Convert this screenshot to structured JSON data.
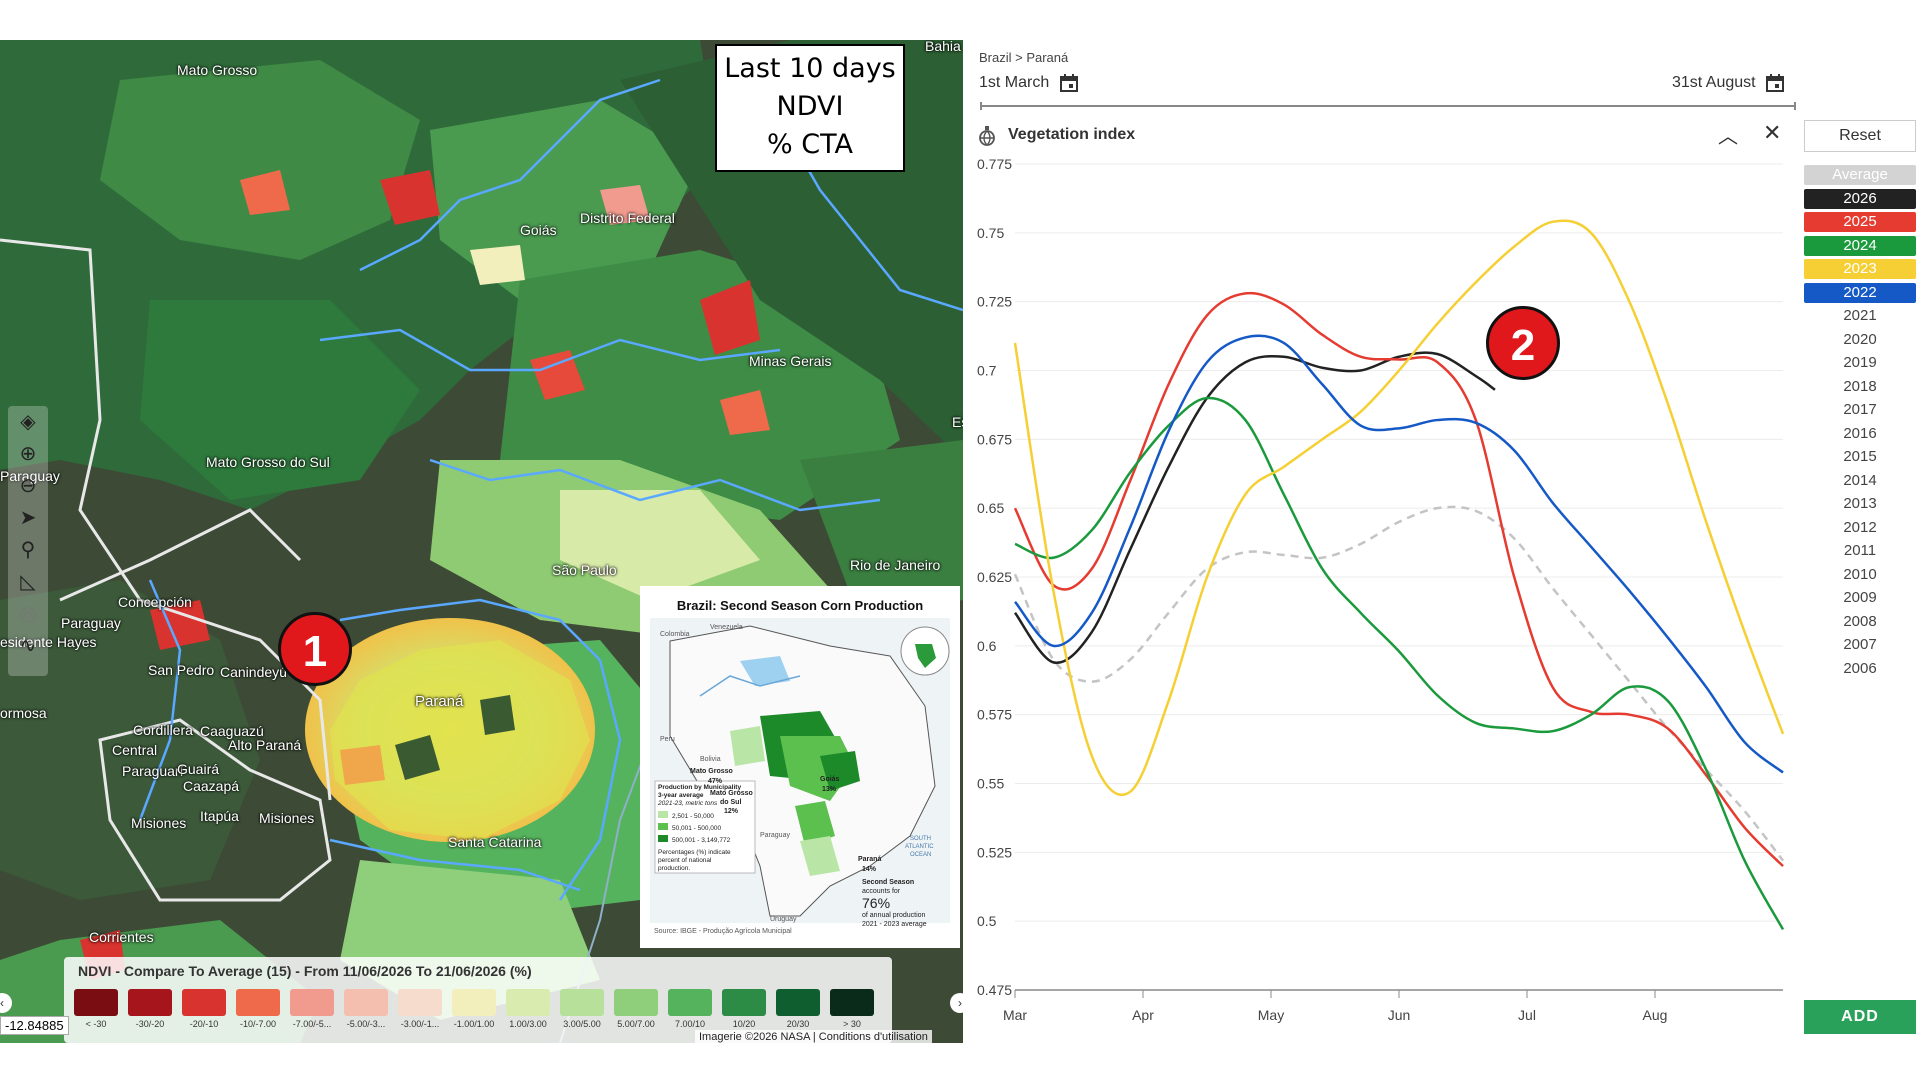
{
  "map": {
    "info_box": [
      "Last 10 days",
      "NDVI",
      "% CTA"
    ],
    "labels": [
      {
        "text": "Mato Grosso",
        "key": "mg"
      },
      {
        "text": "Bahia",
        "key": "ba"
      },
      {
        "text": "Goiás",
        "key": "go"
      },
      {
        "text": "Distrito Federal",
        "key": "df"
      },
      {
        "text": "Minas Gerais",
        "key": "mgr"
      },
      {
        "text": "Mato Grosso do Sul",
        "key": "ms"
      },
      {
        "text": "Paraguay",
        "key": "py1"
      },
      {
        "text": "São Paulo",
        "key": "sp"
      },
      {
        "text": "Rio de Janeiro",
        "key": "rj"
      },
      {
        "text": "Concepción",
        "key": "con"
      },
      {
        "text": "Paraguay",
        "key": "py2"
      },
      {
        "text": "esidente Hayes",
        "key": "ph"
      },
      {
        "text": "San Pedro",
        "key": "spd"
      },
      {
        "text": "Canindeyú",
        "key": "can"
      },
      {
        "text": "Paraná",
        "key": "pr"
      },
      {
        "text": "ormosa",
        "key": "for"
      },
      {
        "text": "Cordillera",
        "key": "cor"
      },
      {
        "text": "Caaguazú",
        "key": "caa"
      },
      {
        "text": "Alto Paraná",
        "key": "ap"
      },
      {
        "text": "Central",
        "key": "cen"
      },
      {
        "text": "Paraguarí",
        "key": "par"
      },
      {
        "text": "Guairá",
        "key": "gua"
      },
      {
        "text": "Caazapá",
        "key": "caz"
      },
      {
        "text": "Itapúa",
        "key": "ita"
      },
      {
        "text": "Misiones",
        "key": "mis1"
      },
      {
        "text": "Misiones",
        "key": "mis2"
      },
      {
        "text": "Santa Catarina",
        "key": "sc"
      },
      {
        "text": "Corrientes",
        "key": "corr"
      },
      {
        "text": "Es",
        "key": "es"
      }
    ],
    "badge_1": "1",
    "coordinate": "-12.84885",
    "attribution": "Imagerie ©2026 NASA | Conditions d'utilisation",
    "legend": {
      "title": "NDVI - Compare To Average (15) - From 11/06/2026 To 21/06/2026 (%)",
      "classes": [
        {
          "label": "< -30",
          "color": "#7a0d12"
        },
        {
          "label": "-30/-20",
          "color": "#a5151b"
        },
        {
          "label": "-20/-10",
          "color": "#d8332e"
        },
        {
          "label": "-10/-7.00",
          "color": "#ef6a4a"
        },
        {
          "label": "-7.00/-5...",
          "color": "#f19a8e"
        },
        {
          "label": "-5.00/-3...",
          "color": "#f4bfae"
        },
        {
          "label": "-3.00/-1...",
          "color": "#f6dccd"
        },
        {
          "label": "-1.00/1.00",
          "color": "#f2efbd"
        },
        {
          "label": "1.00/3.00",
          "color": "#d9ebae"
        },
        {
          "label": "3.00/5.00",
          "color": "#b7e09a"
        },
        {
          "label": "5.00/7.00",
          "color": "#8fcf7c"
        },
        {
          "label": "7.00/10",
          "color": "#56b35d"
        },
        {
          "label": "10/20",
          "color": "#2c8b45"
        },
        {
          "label": "20/30",
          "color": "#0f5e30"
        },
        {
          "label": "> 30",
          "color": "#0a2a1a"
        }
      ]
    },
    "inset": {
      "title": "Brazil: Second Season Corn Production",
      "region_labels": [
        {
          "text": "Mato Grosso",
          "key": "imt"
        },
        {
          "text": "47%",
          "key": "imtp"
        },
        {
          "text": "Goiás",
          "key": "igo"
        },
        {
          "text": "13%",
          "key": "igop"
        },
        {
          "text": "Mato Grosso",
          "key": "ims"
        },
        {
          "text": "do Sul",
          "key": "ims2"
        },
        {
          "text": "12%",
          "key": "imsp"
        },
        {
          "text": "Paraná",
          "key": "ipr"
        },
        {
          "text": "14%",
          "key": "iprp"
        },
        {
          "text": "Colombia",
          "key": "icol"
        },
        {
          "text": "Venezuela",
          "key": "iven"
        },
        {
          "text": "Peru",
          "key": "iper"
        },
        {
          "text": "Bolivia",
          "key": "ibol"
        },
        {
          "text": "Paraguay",
          "key": "ipar"
        },
        {
          "text": "Uruguay",
          "key": "iuru"
        },
        {
          "text": "SOUTH",
          "key": "iso"
        },
        {
          "text": "ATLANTIC",
          "key": "iat"
        },
        {
          "text": "OCEAN",
          "key": "ioc"
        }
      ],
      "legend_title": "Production by Municipality",
      "legend_sub1": "3-year average",
      "legend_sub2": "2021-23, metric tons",
      "legend_items": [
        {
          "label": "2,501 - 50,000",
          "color": "#b9e6a6"
        },
        {
          "label": "50,001 - 500,000",
          "color": "#5cc04f"
        },
        {
          "label": "500,001 - 3,149,772",
          "color": "#1d8a2a"
        }
      ],
      "legend_note": [
        "Percentages (%) indicate",
        "percent of national",
        "production."
      ],
      "second_season": [
        "Second Season",
        "accounts for",
        "76%",
        "of annual production",
        "2021 - 2023 average"
      ],
      "source": "Source: IBGE - Produção Agrícola Municipal"
    }
  },
  "chart": {
    "breadcrumb": "Brazil > Paraná",
    "start_date": "1st March",
    "end_date": "31st August",
    "panel_title": "Vegetation index",
    "reset_label": "Reset",
    "add_label": "ADD",
    "badge_2": "2",
    "years": [
      {
        "label": "Average",
        "bg": "#d3d3d3",
        "fg": "#ffffff"
      },
      {
        "label": "2026",
        "bg": "#222222",
        "fg": "#ffffff"
      },
      {
        "label": "2025",
        "bg": "#e53b30",
        "fg": "#ffffff"
      },
      {
        "label": "2024",
        "bg": "#1a9a3c",
        "fg": "#ffffff"
      },
      {
        "label": "2023",
        "bg": "#f5cf33",
        "fg": "#ffffff"
      },
      {
        "label": "2022",
        "bg": "#1559c7",
        "fg": "#ffffff"
      },
      {
        "label": "2021",
        "bg": "",
        "fg": "#444444"
      },
      {
        "label": "2020",
        "bg": "",
        "fg": "#444444"
      },
      {
        "label": "2019",
        "bg": "",
        "fg": "#444444"
      },
      {
        "label": "2018",
        "bg": "",
        "fg": "#444444"
      },
      {
        "label": "2017",
        "bg": "",
        "fg": "#444444"
      },
      {
        "label": "2016",
        "bg": "",
        "fg": "#444444"
      },
      {
        "label": "2015",
        "bg": "",
        "fg": "#444444"
      },
      {
        "label": "2014",
        "bg": "",
        "fg": "#444444"
      },
      {
        "label": "2013",
        "bg": "",
        "fg": "#444444"
      },
      {
        "label": "2012",
        "bg": "",
        "fg": "#444444"
      },
      {
        "label": "2011",
        "bg": "",
        "fg": "#444444"
      },
      {
        "label": "2010",
        "bg": "",
        "fg": "#444444"
      },
      {
        "label": "2009",
        "bg": "",
        "fg": "#444444"
      },
      {
        "label": "2008",
        "bg": "",
        "fg": "#444444"
      },
      {
        "label": "2007",
        "bg": "",
        "fg": "#444444"
      },
      {
        "label": "2006",
        "bg": "",
        "fg": "#444444"
      }
    ]
  },
  "chart_data": {
    "type": "line",
    "title": "Vegetation index",
    "xlabel": "",
    "ylabel": "",
    "x_ticks": [
      "Mar",
      "Apr",
      "May",
      "Jun",
      "Jul",
      "Aug"
    ],
    "xlim": [
      0,
      6
    ],
    "ylim": [
      0.475,
      0.775
    ],
    "y_ticks": [
      0.775,
      0.75,
      0.725,
      0.7,
      0.675,
      0.65,
      0.625,
      0.6,
      0.575,
      0.55,
      0.525,
      0.5,
      0.475
    ],
    "y_tick_labels": [
      "0.775",
      "0.75",
      "0.725",
      "0.7",
      "0.675",
      "0.65",
      "0.625",
      "0.6",
      "0.575",
      "0.55",
      "0.525",
      "0.5",
      "0.475"
    ],
    "grid": true,
    "series": [
      {
        "name": "Average",
        "color": "#c4c4c4",
        "dashed": true,
        "x": [
          0,
          0.3,
          0.6,
          0.9,
          1.2,
          1.5,
          1.8,
          2.1,
          2.4,
          2.7,
          3.0,
          3.3,
          3.6,
          3.9,
          4.2,
          4.5,
          4.8,
          5.1,
          5.4,
          5.7,
          6.0
        ],
        "y": [
          0.626,
          0.595,
          0.587,
          0.595,
          0.612,
          0.628,
          0.634,
          0.633,
          0.632,
          0.637,
          0.645,
          0.65,
          0.649,
          0.639,
          0.621,
          0.604,
          0.587,
          0.57,
          0.555,
          0.54,
          0.522
        ]
      },
      {
        "name": "2026",
        "color": "#222222",
        "dashed": false,
        "x": [
          0,
          0.3,
          0.6,
          0.9,
          1.2,
          1.5,
          1.8,
          2.1,
          2.4,
          2.7,
          3.0,
          3.3,
          3.6,
          3.75
        ],
        "y": [
          0.612,
          0.594,
          0.605,
          0.635,
          0.665,
          0.69,
          0.703,
          0.705,
          0.701,
          0.7,
          0.705,
          0.706,
          0.698,
          0.693
        ]
      },
      {
        "name": "2025",
        "color": "#e53b30",
        "dashed": false,
        "x": [
          0,
          0.3,
          0.6,
          0.9,
          1.2,
          1.5,
          1.8,
          2.1,
          2.4,
          2.7,
          3.0,
          3.3,
          3.6,
          3.9,
          4.2,
          4.5,
          4.8,
          5.1,
          5.4,
          5.7,
          6.0
        ],
        "y": [
          0.65,
          0.622,
          0.628,
          0.66,
          0.695,
          0.72,
          0.728,
          0.724,
          0.713,
          0.705,
          0.704,
          0.703,
          0.682,
          0.625,
          0.585,
          0.576,
          0.575,
          0.57,
          0.553,
          0.534,
          0.52
        ]
      },
      {
        "name": "2024",
        "color": "#1a9a3c",
        "dashed": false,
        "x": [
          0,
          0.3,
          0.6,
          0.9,
          1.2,
          1.5,
          1.8,
          2.1,
          2.4,
          2.7,
          3.0,
          3.3,
          3.6,
          3.9,
          4.2,
          4.5,
          4.8,
          5.1,
          5.4,
          5.7,
          6.0
        ],
        "y": [
          0.637,
          0.632,
          0.642,
          0.663,
          0.68,
          0.69,
          0.682,
          0.655,
          0.628,
          0.612,
          0.598,
          0.582,
          0.572,
          0.57,
          0.569,
          0.575,
          0.585,
          0.58,
          0.555,
          0.522,
          0.497
        ]
      },
      {
        "name": "2023",
        "color": "#f5cf33",
        "dashed": false,
        "x": [
          0,
          0.3,
          0.6,
          0.9,
          1.2,
          1.5,
          1.8,
          2.1,
          2.4,
          2.7,
          3.0,
          3.3,
          3.6,
          3.9,
          4.2,
          4.5,
          4.8,
          5.1,
          5.4,
          5.7,
          6.0
        ],
        "y": [
          0.71,
          0.62,
          0.56,
          0.547,
          0.58,
          0.625,
          0.655,
          0.665,
          0.675,
          0.685,
          0.7,
          0.717,
          0.732,
          0.745,
          0.754,
          0.75,
          0.725,
          0.688,
          0.645,
          0.605,
          0.568
        ]
      },
      {
        "name": "2022",
        "color": "#1559c7",
        "dashed": false,
        "x": [
          0,
          0.3,
          0.6,
          0.9,
          1.2,
          1.5,
          1.8,
          2.1,
          2.4,
          2.7,
          3.0,
          3.3,
          3.6,
          3.9,
          4.2,
          4.5,
          4.8,
          5.1,
          5.4,
          5.7,
          6.0
        ],
        "y": [
          0.616,
          0.6,
          0.612,
          0.643,
          0.678,
          0.703,
          0.712,
          0.71,
          0.695,
          0.68,
          0.679,
          0.682,
          0.681,
          0.671,
          0.652,
          0.636,
          0.62,
          0.603,
          0.585,
          0.565,
          0.554
        ]
      }
    ]
  }
}
